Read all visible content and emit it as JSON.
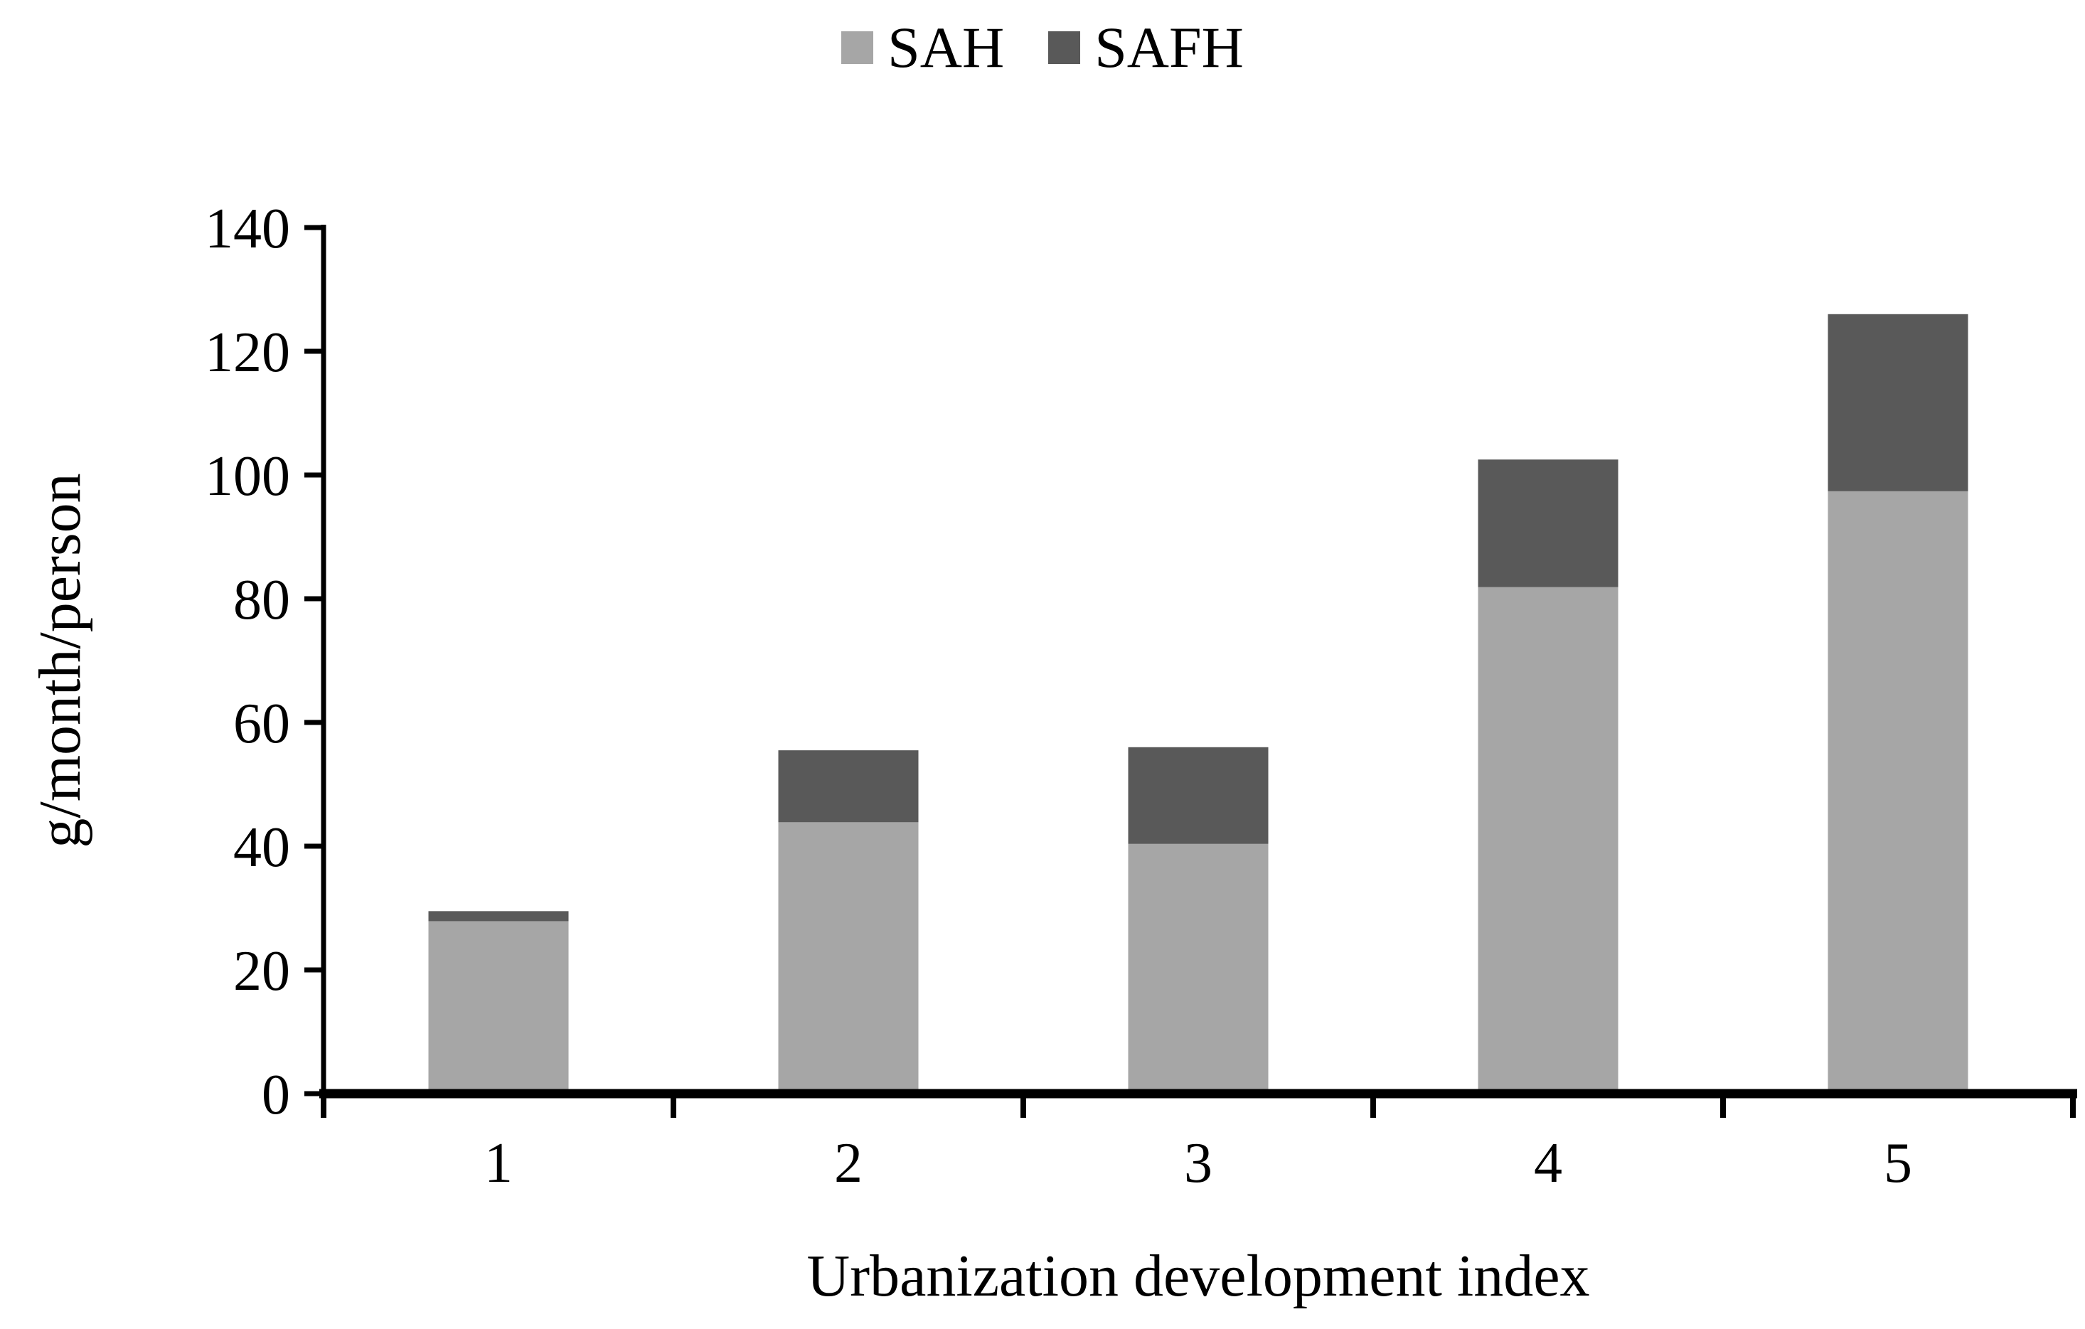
{
  "chart_data": {
    "type": "bar",
    "stacked": true,
    "categories": [
      "1",
      "2",
      "3",
      "4",
      "5"
    ],
    "series": [
      {
        "name": "SAH",
        "color": "#a6a6a6",
        "values": [
          28,
          44,
          40.5,
          82,
          97.5
        ]
      },
      {
        "name": "SAFH",
        "color": "#595959",
        "values": [
          1.5,
          11.5,
          15.5,
          20.5,
          28.5
        ]
      }
    ],
    "stack_totals": [
      29.5,
      55.5,
      56,
      102.5,
      126
    ],
    "title": "",
    "xlabel": "Urbanization development index",
    "ylabel": "g/month/person",
    "ylim": [
      0,
      140
    ],
    "ytick_step": 20,
    "yticks": [
      "0",
      "20",
      "40",
      "60",
      "80",
      "100",
      "120",
      "140"
    ],
    "legend_position": "top",
    "grid": false,
    "axis_color": "#000000",
    "background": "#ffffff"
  }
}
